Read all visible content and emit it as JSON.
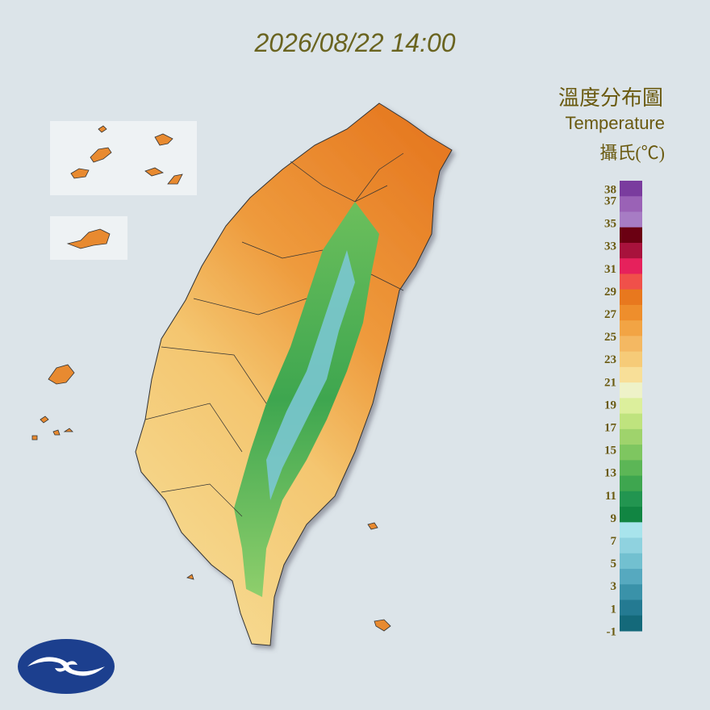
{
  "header": {
    "timestamp": "2026/08/22 14:00"
  },
  "legend": {
    "title": "溫度分布圖",
    "subtitle": "Temperature",
    "unit": "攝氏(℃)",
    "labels": [
      38,
      37,
      35,
      33,
      31,
      29,
      27,
      25,
      23,
      21,
      19,
      17,
      15,
      13,
      11,
      9,
      7,
      5,
      3,
      1,
      -1
    ],
    "colors": [
      "#7a3c9e",
      "#9a62b6",
      "#a77cc4",
      "#6b0012",
      "#a8123c",
      "#e6215c",
      "#f0504a",
      "#e8781e",
      "#ee8e2c",
      "#f2a444",
      "#f4b862",
      "#f6cb78",
      "#f8df98",
      "#eef2c8",
      "#dcef9c",
      "#bfe37e",
      "#9fd36c",
      "#7ec660",
      "#5cb656",
      "#3ea64f",
      "#229550",
      "#118542",
      "#a8e4ec",
      "#8fd2df",
      "#72c0d0",
      "#56a9bf",
      "#3a92a9",
      "#247a92",
      "#14697a"
    ]
  }
}
